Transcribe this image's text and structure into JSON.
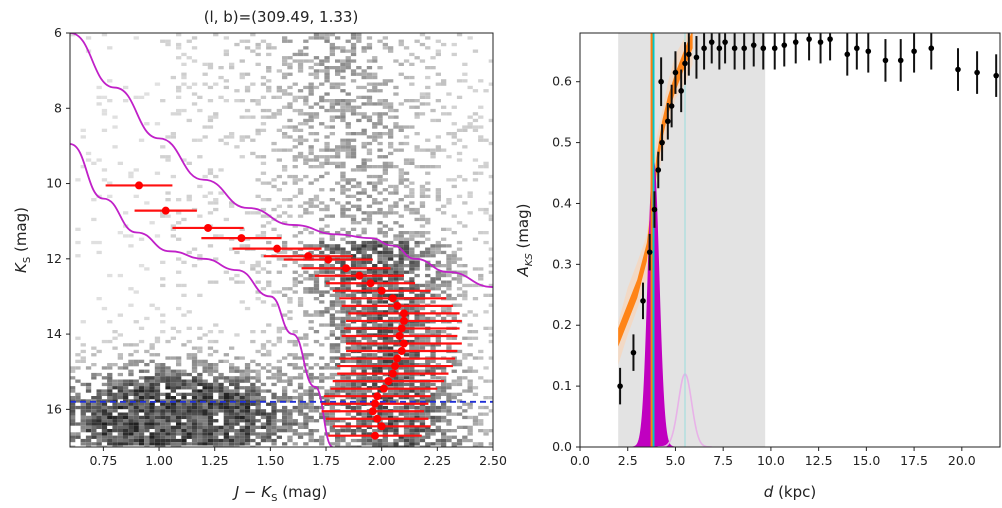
{
  "chart_data": [
    {
      "type": "scatter",
      "title": "(l, b)=(309.49, 1.33)",
      "xlabel": "J − K",
      "xlabel_sub": "S",
      "xlabel_unit": " (mag)",
      "ylabel": "K",
      "ylabel_sub": "S",
      "ylabel_unit": " (mag)",
      "xlim": [
        0.6,
        2.5
      ],
      "ylim": [
        17.0,
        6.0
      ],
      "y_inverted": true,
      "xticks": [
        "0.75",
        "1.00",
        "1.25",
        "1.50",
        "1.75",
        "2.00",
        "2.25",
        "2.50"
      ],
      "yticks": [
        "6",
        "8",
        "10",
        "12",
        "14",
        "16"
      ],
      "background": "2D density of stars (grey)",
      "limit_line": {
        "y": 15.8,
        "color": "#1f2fd6",
        "style": "dashed"
      },
      "curve_color": "#c020c8",
      "upper_curve": [
        [
          0.6,
          6.0
        ],
        [
          0.8,
          7.45
        ],
        [
          1.0,
          8.8
        ],
        [
          1.2,
          9.9
        ],
        [
          1.4,
          10.65
        ],
        [
          1.6,
          11.1
        ],
        [
          1.8,
          11.35
        ],
        [
          1.95,
          11.45
        ],
        [
          2.05,
          11.65
        ],
        [
          2.15,
          12.0
        ],
        [
          2.3,
          12.35
        ],
        [
          2.5,
          12.75
        ]
      ],
      "lower_curve": [
        [
          0.6,
          8.95
        ],
        [
          0.75,
          10.4
        ],
        [
          0.9,
          11.3
        ],
        [
          1.05,
          11.8
        ],
        [
          1.2,
          12.0
        ],
        [
          1.35,
          12.3
        ],
        [
          1.5,
          13.0
        ],
        [
          1.6,
          14.0
        ],
        [
          1.7,
          15.4
        ],
        [
          1.78,
          17.0
        ]
      ],
      "red_points": [
        {
          "x": 0.91,
          "y": 10.05,
          "xerr": 0.15
        },
        {
          "x": 1.03,
          "y": 10.72,
          "xerr": 0.14
        },
        {
          "x": 1.22,
          "y": 11.18,
          "xerr": 0.16
        },
        {
          "x": 1.37,
          "y": 11.45,
          "xerr": 0.18
        },
        {
          "x": 1.53,
          "y": 11.73,
          "xerr": 0.2
        },
        {
          "x": 1.67,
          "y": 11.93,
          "xerr": 0.2
        },
        {
          "x": 1.76,
          "y": 12.02,
          "xerr": 0.2
        },
        {
          "x": 1.84,
          "y": 12.25,
          "xerr": 0.2
        },
        {
          "x": 1.9,
          "y": 12.45,
          "xerr": 0.2
        },
        {
          "x": 1.95,
          "y": 12.65,
          "xerr": 0.2
        },
        {
          "x": 2.0,
          "y": 12.85,
          "xerr": 0.22
        },
        {
          "x": 2.05,
          "y": 13.05,
          "xerr": 0.24
        },
        {
          "x": 2.07,
          "y": 13.25,
          "xerr": 0.25
        },
        {
          "x": 2.1,
          "y": 13.45,
          "xerr": 0.25
        },
        {
          "x": 2.1,
          "y": 13.65,
          "xerr": 0.26
        },
        {
          "x": 2.09,
          "y": 13.85,
          "xerr": 0.26
        },
        {
          "x": 2.08,
          "y": 14.05,
          "xerr": 0.26
        },
        {
          "x": 2.1,
          "y": 14.25,
          "xerr": 0.26
        },
        {
          "x": 2.09,
          "y": 14.45,
          "xerr": 0.25
        },
        {
          "x": 2.07,
          "y": 14.65,
          "xerr": 0.26
        },
        {
          "x": 2.06,
          "y": 14.85,
          "xerr": 0.26
        },
        {
          "x": 2.05,
          "y": 15.05,
          "xerr": 0.25
        },
        {
          "x": 2.03,
          "y": 15.25,
          "xerr": 0.25
        },
        {
          "x": 2.01,
          "y": 15.45,
          "xerr": 0.24
        },
        {
          "x": 1.98,
          "y": 15.65,
          "xerr": 0.24
        },
        {
          "x": 1.97,
          "y": 15.85,
          "xerr": 0.24
        },
        {
          "x": 1.96,
          "y": 16.05,
          "xerr": 0.23
        },
        {
          "x": 1.98,
          "y": 16.25,
          "xerr": 0.23
        },
        {
          "x": 2.0,
          "y": 16.45,
          "xerr": 0.22
        },
        {
          "x": 1.97,
          "y": 16.7,
          "xerr": 0.21
        }
      ]
    },
    {
      "type": "scatter",
      "title": "",
      "xlabel": "d",
      "xlabel_unit": " (kpc)",
      "ylabel": "A",
      "ylabel_sub": "KS",
      "ylabel_unit": " (mag)",
      "xlim": [
        0.0,
        22.0
      ],
      "ylim": [
        0.0,
        0.68
      ],
      "xticks": [
        {
          "v": 0,
          "t": "0.0"
        },
        {
          "v": 2.5,
          "t": "2.5"
        },
        {
          "v": 5,
          "t": "5.0"
        },
        {
          "v": 7.5,
          "t": "7.5"
        },
        {
          "v": 10,
          "t": "10.0"
        },
        {
          "v": 12.5,
          "t": "12.5"
        },
        {
          "v": 15,
          "t": "15.0"
        },
        {
          "v": 17.5,
          "t": "17.5"
        },
        {
          "v": 20,
          "t": "20.0"
        }
      ],
      "yticks": [
        {
          "v": 0,
          "t": "0.0"
        },
        {
          "v": 0.1,
          "t": "0.1"
        },
        {
          "v": 0.2,
          "t": "0.2"
        },
        {
          "v": 0.3,
          "t": "0.3"
        },
        {
          "v": 0.4,
          "t": "0.4"
        },
        {
          "v": 0.5,
          "t": "0.5"
        },
        {
          "v": 0.6,
          "t": "0.6"
        }
      ],
      "shaded_range": [
        2.0,
        9.7
      ],
      "vertical_lines": [
        {
          "x": 3.85,
          "color": "#00c8c8"
        },
        {
          "x": 3.75,
          "color": "#ff7f0e"
        },
        {
          "x": 5.5,
          "color": "#9adede"
        }
      ],
      "magenta_peak": {
        "center": 3.85,
        "sigma": 0.28,
        "height": 0.47,
        "color": "#c000c0"
      },
      "pink_peak": {
        "center": 5.5,
        "sigma": 0.35,
        "height": 0.12,
        "color": "#e8b2e8"
      },
      "orange_fit": [
        [
          2.0,
          0.18
        ],
        [
          2.5,
          0.22
        ],
        [
          3.0,
          0.26
        ],
        [
          3.5,
          0.32
        ],
        [
          3.8,
          0.4
        ],
        [
          4.0,
          0.46
        ],
        [
          4.3,
          0.52
        ],
        [
          4.6,
          0.56
        ],
        [
          5.0,
          0.6
        ],
        [
          5.5,
          0.64
        ],
        [
          5.9,
          0.67
        ]
      ],
      "points": [
        {
          "x": 2.1,
          "y": 0.1,
          "err": 0.03
        },
        {
          "x": 2.8,
          "y": 0.155,
          "err": 0.03
        },
        {
          "x": 3.3,
          "y": 0.24,
          "err": 0.03
        },
        {
          "x": 3.65,
          "y": 0.32,
          "err": 0.03
        },
        {
          "x": 3.9,
          "y": 0.39,
          "err": 0.03
        },
        {
          "x": 4.1,
          "y": 0.455,
          "err": 0.03
        },
        {
          "x": 4.3,
          "y": 0.5,
          "err": 0.03
        },
        {
          "x": 4.25,
          "y": 0.6,
          "err": 0.04
        },
        {
          "x": 4.6,
          "y": 0.535,
          "err": 0.03
        },
        {
          "x": 4.8,
          "y": 0.56,
          "err": 0.035
        },
        {
          "x": 5.0,
          "y": 0.615,
          "err": 0.035
        },
        {
          "x": 5.3,
          "y": 0.585,
          "err": 0.035
        },
        {
          "x": 5.5,
          "y": 0.63,
          "err": 0.035
        },
        {
          "x": 5.7,
          "y": 0.645,
          "err": 0.035
        },
        {
          "x": 6.1,
          "y": 0.64,
          "err": 0.035
        },
        {
          "x": 6.5,
          "y": 0.655,
          "err": 0.035
        },
        {
          "x": 6.9,
          "y": 0.665,
          "err": 0.035
        },
        {
          "x": 7.3,
          "y": 0.655,
          "err": 0.035
        },
        {
          "x": 7.6,
          "y": 0.665,
          "err": 0.035
        },
        {
          "x": 8.1,
          "y": 0.655,
          "err": 0.035
        },
        {
          "x": 8.6,
          "y": 0.655,
          "err": 0.035
        },
        {
          "x": 9.1,
          "y": 0.66,
          "err": 0.035
        },
        {
          "x": 9.6,
          "y": 0.655,
          "err": 0.035
        },
        {
          "x": 10.2,
          "y": 0.655,
          "err": 0.035
        },
        {
          "x": 10.7,
          "y": 0.66,
          "err": 0.035
        },
        {
          "x": 11.3,
          "y": 0.665,
          "err": 0.035
        },
        {
          "x": 12.0,
          "y": 0.67,
          "err": 0.035
        },
        {
          "x": 12.6,
          "y": 0.665,
          "err": 0.035
        },
        {
          "x": 13.1,
          "y": 0.67,
          "err": 0.035
        },
        {
          "x": 14.0,
          "y": 0.645,
          "err": 0.035
        },
        {
          "x": 14.5,
          "y": 0.655,
          "err": 0.035
        },
        {
          "x": 15.1,
          "y": 0.65,
          "err": 0.035
        },
        {
          "x": 16.0,
          "y": 0.635,
          "err": 0.035
        },
        {
          "x": 16.8,
          "y": 0.635,
          "err": 0.035
        },
        {
          "x": 17.5,
          "y": 0.65,
          "err": 0.035
        },
        {
          "x": 18.4,
          "y": 0.655,
          "err": 0.035
        },
        {
          "x": 19.8,
          "y": 0.62,
          "err": 0.035
        },
        {
          "x": 20.8,
          "y": 0.615,
          "err": 0.035
        },
        {
          "x": 21.8,
          "y": 0.61,
          "err": 0.035
        }
      ]
    }
  ]
}
